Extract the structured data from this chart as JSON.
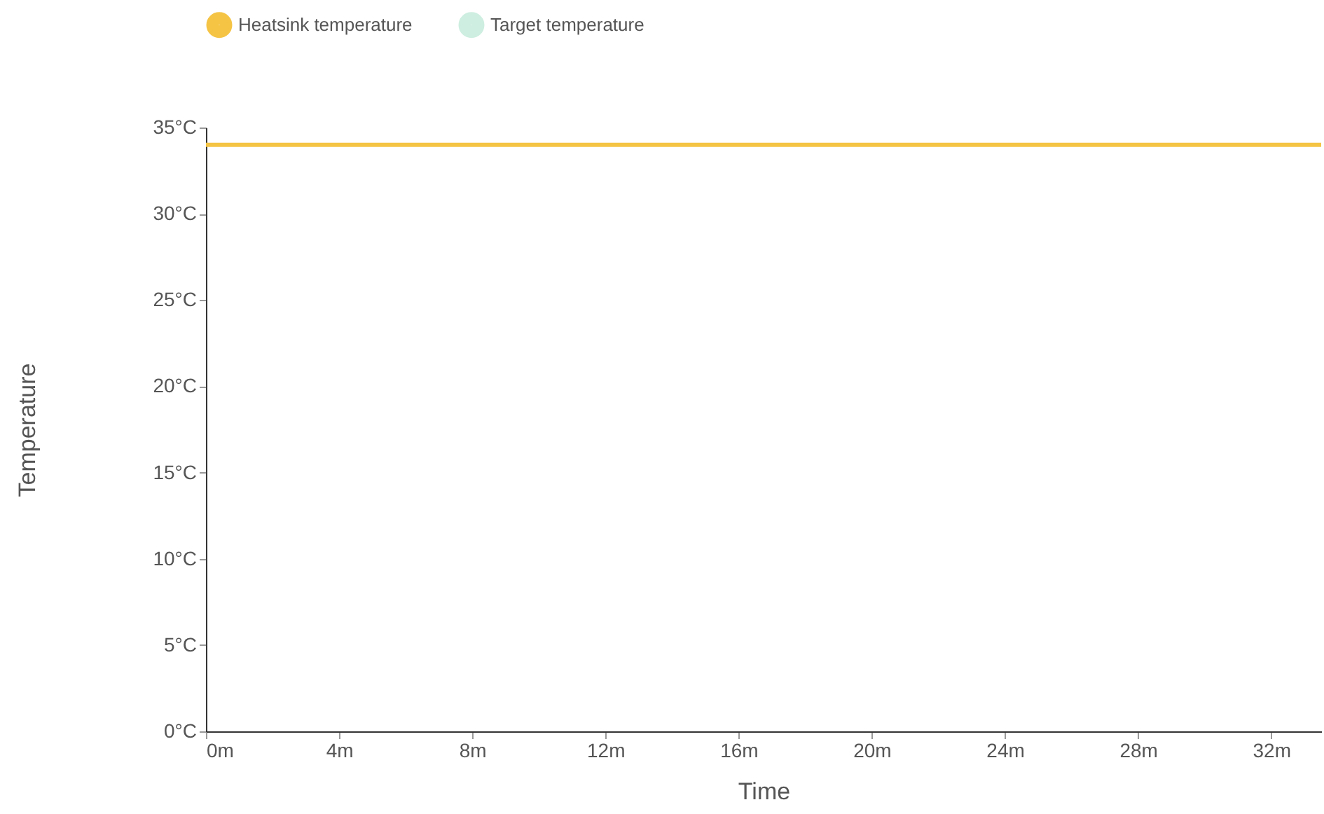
{
  "chart_data": {
    "type": "line",
    "xlabel": "Time",
    "ylabel": "Temperature",
    "x": [
      0,
      33.5
    ],
    "series": [
      {
        "name": "Heatsink temperature",
        "color": "#f5c445",
        "values": [
          34,
          34
        ]
      },
      {
        "name": "Target temperature",
        "color": "#cdeee0",
        "values": [
          null,
          null
        ]
      }
    ],
    "xlim": [
      0,
      33.5
    ],
    "xticks": [
      {
        "value": 0,
        "label": "0m"
      },
      {
        "value": 4,
        "label": "4m"
      },
      {
        "value": 8,
        "label": "8m"
      },
      {
        "value": 12,
        "label": "12m"
      },
      {
        "value": 16,
        "label": "16m"
      },
      {
        "value": 20,
        "label": "20m"
      },
      {
        "value": 24,
        "label": "24m"
      },
      {
        "value": 28,
        "label": "28m"
      },
      {
        "value": 32,
        "label": "32m"
      }
    ],
    "ylim": [
      0,
      35
    ],
    "yticks": [
      {
        "value": 0,
        "label": "0°C"
      },
      {
        "value": 5,
        "label": "5°C"
      },
      {
        "value": 10,
        "label": "10°C"
      },
      {
        "value": 15,
        "label": "15°C"
      },
      {
        "value": 20,
        "label": "20°C"
      },
      {
        "value": 25,
        "label": "25°C"
      },
      {
        "value": 30,
        "label": "30°C"
      },
      {
        "value": 35,
        "label": "35°C"
      }
    ],
    "grid": false,
    "legend": "top",
    "marker": "none",
    "line_style": "solid"
  }
}
